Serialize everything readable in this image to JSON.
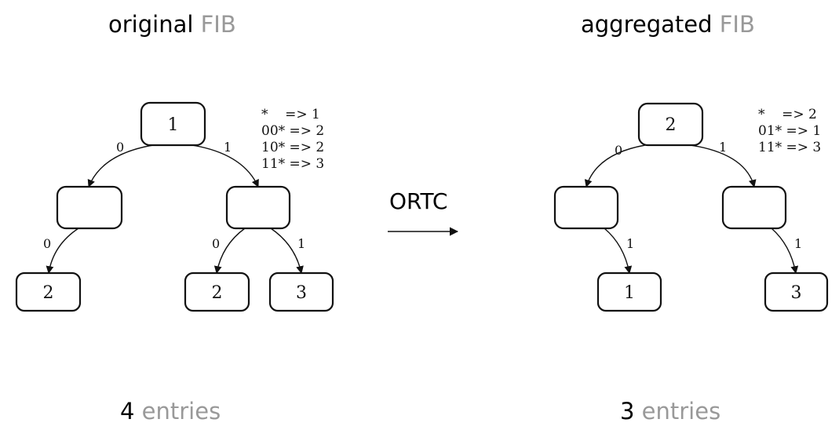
{
  "left": {
    "title_main": "original",
    "title_sub": "FIB",
    "count_value": "4",
    "count_label": "entries",
    "table": [
      "*    => 1",
      "00* => 2",
      "10* => 2",
      "11* => 3"
    ],
    "nodes": {
      "root": "1",
      "l": "",
      "r": "",
      "ll": "2",
      "rl": "2",
      "rr": "3"
    },
    "edges": {
      "root_l": "0",
      "root_r": "1",
      "l_ll": "0",
      "r_rl": "0",
      "r_rr": "1"
    }
  },
  "operation": {
    "label": "ORTC"
  },
  "right": {
    "title_main": "aggregated",
    "title_sub": "FIB",
    "count_value": "3",
    "count_label": "entries",
    "table": [
      "*    => 2",
      "01* => 1",
      "11* => 3"
    ],
    "nodes": {
      "root": "2",
      "l": "",
      "r": "",
      "lr": "1",
      "rr": "3"
    },
    "edges": {
      "root_l": "0",
      "root_r": "1",
      "l_lr": "1",
      "r_rr": "1"
    }
  }
}
